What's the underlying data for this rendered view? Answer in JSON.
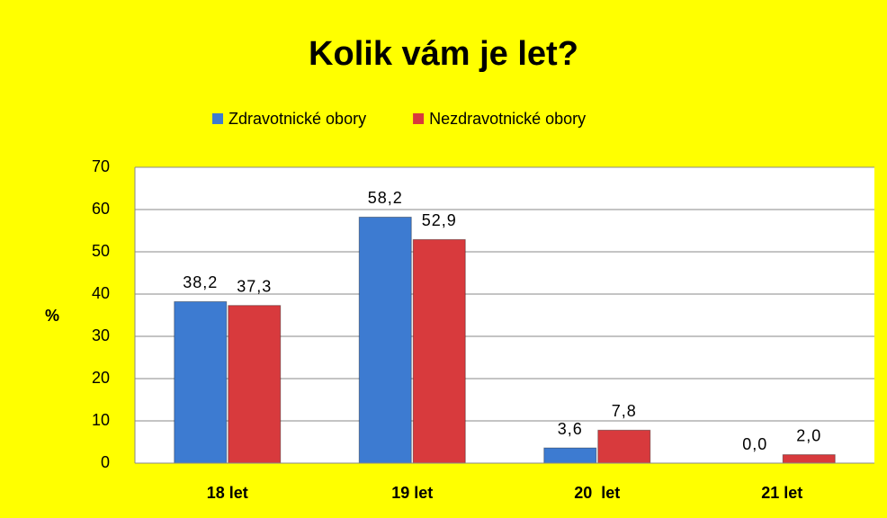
{
  "chart_data": {
    "type": "bar",
    "title": "Kolik vám je let?",
    "ylabel": "%",
    "categories": [
      "18 let",
      "19 let",
      "20  let",
      "21 let"
    ],
    "series": [
      {
        "name": "Zdravotnické obory",
        "color": "#3d7bd1",
        "values": [
          38.2,
          58.2,
          3.6,
          0.0
        ],
        "value_labels": [
          "38,2",
          "58,2",
          "3,6",
          "0,0"
        ]
      },
      {
        "name": "Nezdravotnické obory",
        "color": "#d83a3d",
        "values": [
          37.3,
          52.9,
          7.8,
          2.0
        ],
        "value_labels": [
          "37,3",
          "52,9",
          "7,8",
          "2,0"
        ]
      }
    ],
    "ylim": [
      0,
      70
    ],
    "yticks": [
      0,
      10,
      20,
      30,
      40,
      50,
      60,
      70
    ],
    "grid": true,
    "legend": "top"
  }
}
